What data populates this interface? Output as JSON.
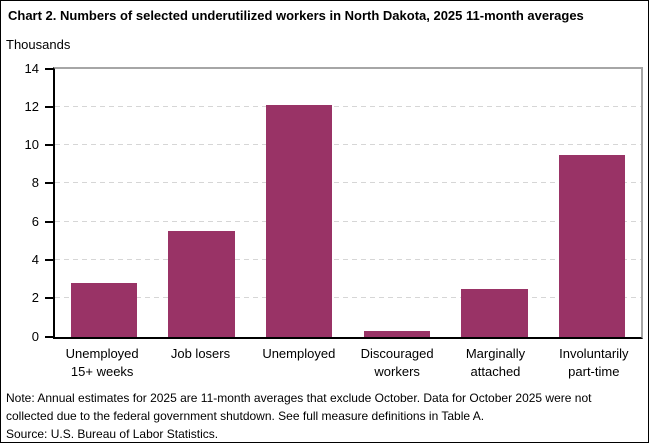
{
  "chart_data": {
    "type": "bar",
    "title": "Chart 2. Numbers of selected underutilized workers in North Dakota, 2025 11-month averages",
    "ylabel": "Thousands",
    "xlabel": "",
    "categories": [
      "Unemployed 15+ weeks",
      "Job losers",
      "Unemployed",
      "Discouraged workers",
      "Marginally attached",
      "Involuntarily part-time"
    ],
    "category_label_lines": [
      [
        "Unemployed",
        "15+ weeks"
      ],
      [
        "Job losers"
      ],
      [
        "Unemployed"
      ],
      [
        "Discouraged",
        "workers"
      ],
      [
        "Marginally",
        "attached"
      ],
      [
        "Involuntarily",
        "part-time"
      ]
    ],
    "values": [
      2.8,
      5.5,
      12.1,
      0.3,
      2.5,
      9.5
    ],
    "ylim": [
      0,
      14
    ],
    "yticks": [
      0,
      2,
      4,
      6,
      8,
      10,
      12,
      14
    ],
    "grid": "horizontal-dashed",
    "legend": "none"
  },
  "notes": {
    "note": "Note: Annual estimates for 2025 are 11-month averages that exclude October. Data for October 2025 were not collected due to the federal government shutdown. See full measure definitions in Table A.",
    "source": "Source: U.S. Bureau of Labor Statistics."
  },
  "colors": {
    "bar": "#993366",
    "gridline": "#d6d6d6",
    "axis": "#000000",
    "frame_gray": "#a6a6a6",
    "background": "#ffffff",
    "border": "#000000"
  }
}
